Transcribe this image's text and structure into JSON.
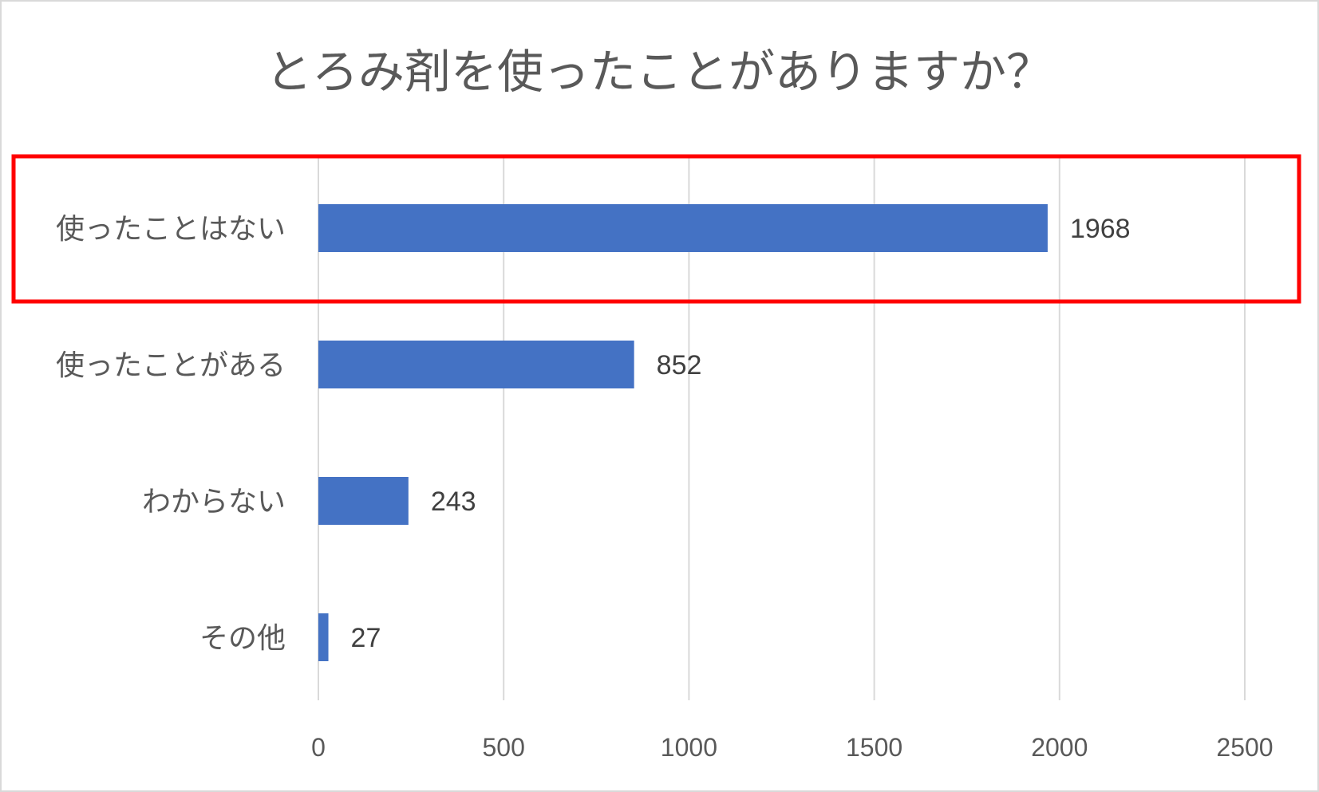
{
  "chart_data": {
    "type": "bar",
    "orientation": "horizontal",
    "title": "とろみ剤を使ったことがありますか？",
    "categories": [
      "使ったことはない",
      "使ったことがある",
      "わからない",
      "その他"
    ],
    "values": [
      1968,
      852,
      243,
      27
    ],
    "data_labels": [
      "1968",
      "852",
      "243",
      "27"
    ],
    "xlim": [
      0,
      2500
    ],
    "x_ticks": [
      0,
      500,
      1000,
      1500,
      2000,
      2500
    ],
    "x_tick_labels": [
      "0",
      "500",
      "1000",
      "1500",
      "2000",
      "2500"
    ],
    "grid": true,
    "legend": "none",
    "bar_color": "#4472c4",
    "highlighted_category": "使ったことはない",
    "highlight_color": "#ff0000"
  }
}
